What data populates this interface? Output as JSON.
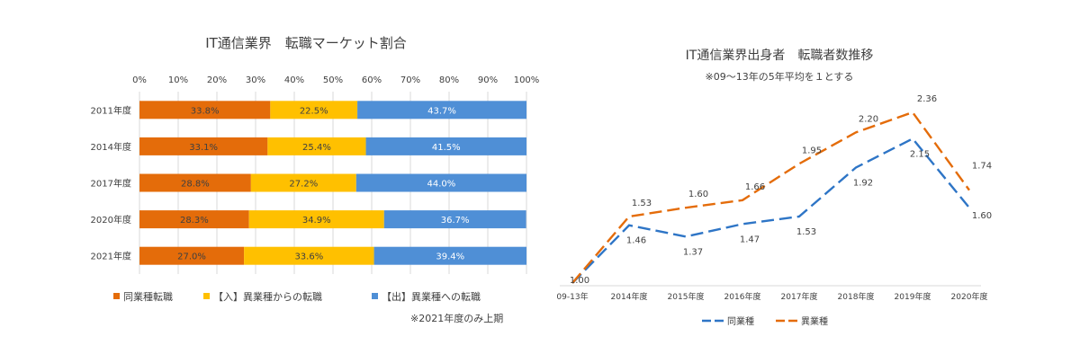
{
  "chart_data": [
    {
      "type": "bar",
      "stacked": "percent",
      "orientation": "horizontal",
      "title": "IT通信業界　転職マーケット割合",
      "xlim": [
        0,
        100
      ],
      "x_ticks": [
        "0%",
        "10%",
        "20%",
        "30%",
        "40%",
        "50%",
        "60%",
        "70%",
        "80%",
        "90%",
        "100%"
      ],
      "categories": [
        "2011年度",
        "2014年度",
        "2017年度",
        "2020年度",
        "2021年度"
      ],
      "series": [
        {
          "name": "同業種転職",
          "color": "#e46c0a",
          "values": [
            33.8,
            33.1,
            28.8,
            28.3,
            27.0
          ],
          "labels": [
            "33.8%",
            "33.1%",
            "28.8%",
            "28.3%",
            "27.0%"
          ]
        },
        {
          "name": "【入】異業種からの転職",
          "color": "#ffc000",
          "values": [
            22.5,
            25.4,
            27.2,
            34.9,
            33.6
          ],
          "labels": [
            "22.5%",
            "25.4%",
            "27.2%",
            "34.9%",
            "33.6%"
          ]
        },
        {
          "name": "【出】異業種への転職",
          "color": "#4f8fd6",
          "values": [
            43.7,
            41.5,
            44.0,
            36.7,
            39.4
          ],
          "labels": [
            "43.7%",
            "41.5%",
            "44.0%",
            "36.7%",
            "39.4%"
          ]
        }
      ],
      "legend_position": "bottom",
      "footnote": "※2021年度のみ上期"
    },
    {
      "type": "line",
      "title": "IT通信業界出身者　転職者数推移",
      "subtitle": "※09～13年の5年平均を１とする",
      "categories": [
        "09-13年",
        "2014年度",
        "2015年度",
        "2016年度",
        "2017年度",
        "2018年度",
        "2019年度",
        "2020年度"
      ],
      "ylim": [
        1.0,
        2.36
      ],
      "series": [
        {
          "name": "同業種",
          "color": "#2e75c6",
          "dash": "long-dash",
          "values": [
            1.0,
            1.46,
            1.37,
            1.47,
            1.53,
            1.92,
            2.15,
            1.6
          ],
          "labels": [
            "1.00",
            "1.46",
            "1.37",
            "1.47",
            "1.53",
            "1.92",
            "2.15",
            "1.60"
          ]
        },
        {
          "name": "異業種",
          "color": "#e46c0a",
          "dash": "long-dash",
          "values": [
            1.0,
            1.53,
            1.6,
            1.66,
            1.95,
            2.2,
            2.36,
            1.74
          ],
          "labels": [
            "1.00",
            "1.53",
            "1.60",
            "1.66",
            "1.95",
            "2.20",
            "2.36",
            "1.74"
          ]
        }
      ],
      "legend_position": "bottom"
    }
  ]
}
